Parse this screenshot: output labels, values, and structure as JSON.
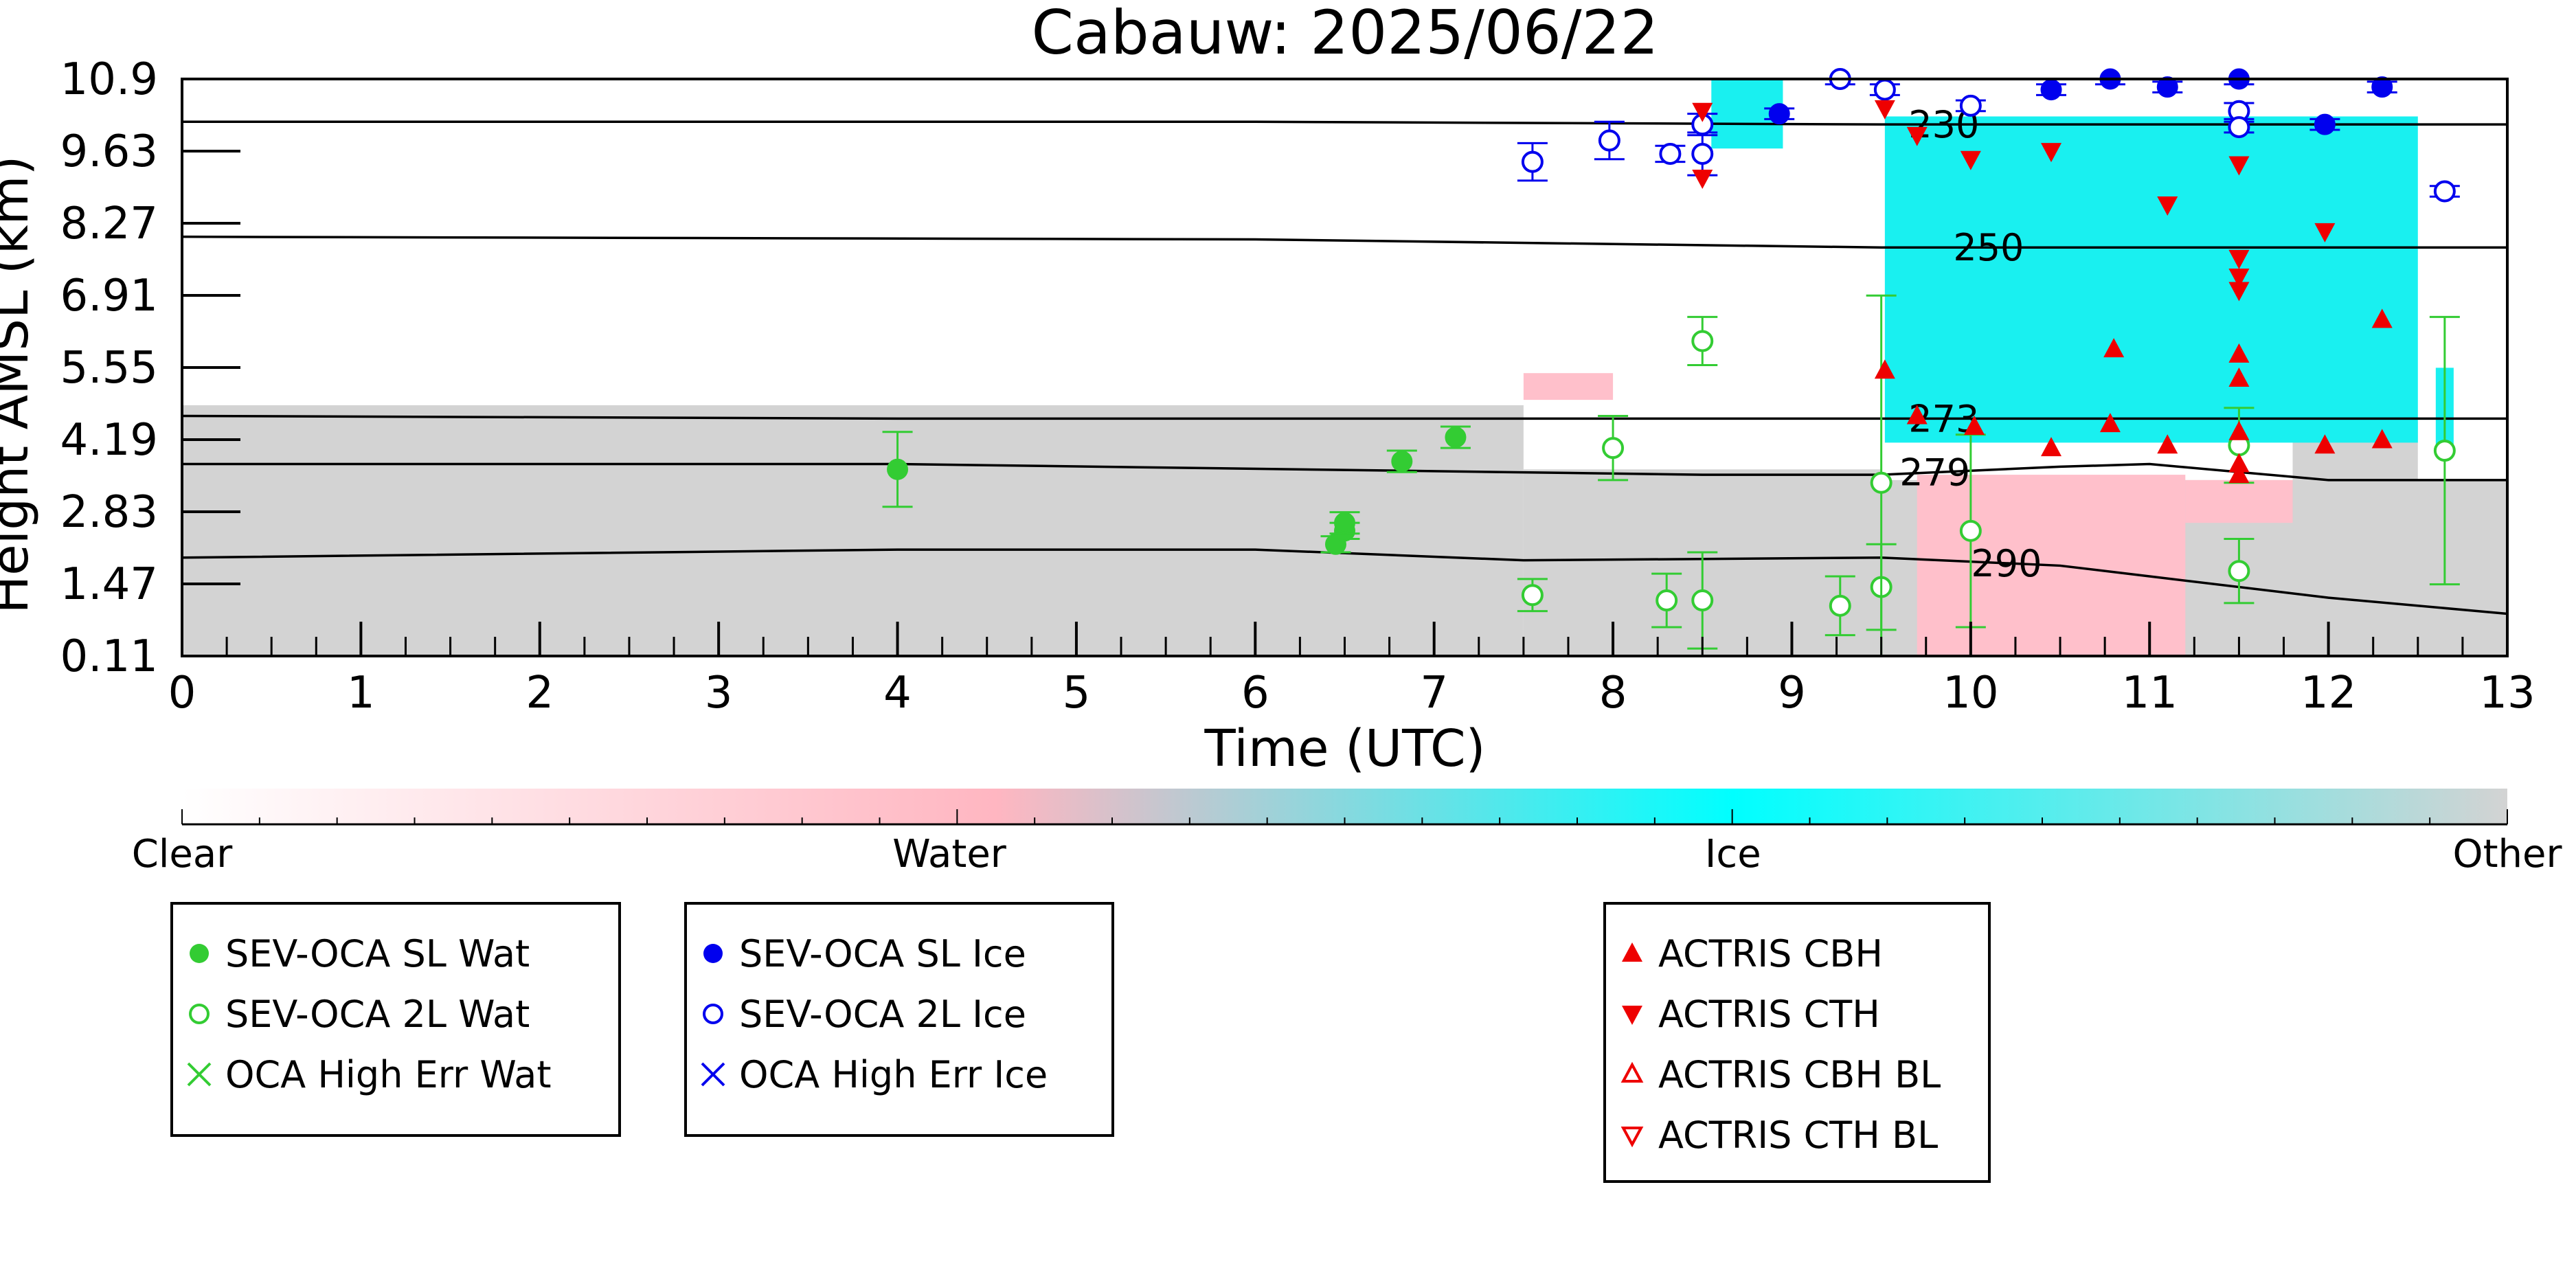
{
  "chart_data": {
    "type": "scatter",
    "title": "Cabauw: 2025/06/22",
    "xlabel": "Time (UTC)",
    "ylabel": "Height AMSL (km)",
    "xlim": [
      0,
      13
    ],
    "ylim": [
      0.11,
      10.9
    ],
    "xticks": [
      "0",
      "1",
      "2",
      "3",
      "4",
      "5",
      "6",
      "7",
      "8",
      "9",
      "10",
      "11",
      "12",
      "13"
    ],
    "yticks": [
      "0.11",
      "1.47",
      "2.83",
      "4.19",
      "5.55",
      "6.91",
      "8.27",
      "9.63",
      "10.9"
    ],
    "colorbar": {
      "labels": [
        {
          "text": "Clear",
          "pos": 0
        },
        {
          "text": "Water",
          "pos": 0.33
        },
        {
          "text": "Ice",
          "pos": 0.667
        },
        {
          "text": "Other",
          "pos": 1
        }
      ],
      "colors": [
        "#ffffff",
        "#ffb6c1",
        "#00ffff",
        "#d3d3d3"
      ]
    },
    "contours": [
      {
        "label": "230",
        "points": [
          [
            0,
            10.1
          ],
          [
            6,
            10.1
          ],
          [
            9.5,
            10.05
          ],
          [
            13,
            10.05
          ]
        ],
        "label_x": 9.85
      },
      {
        "label": "250",
        "points": [
          [
            0,
            7.95
          ],
          [
            6,
            7.9
          ],
          [
            9.5,
            7.75
          ],
          [
            13,
            7.75
          ]
        ],
        "label_x": 10.1
      },
      {
        "label": "273",
        "points": [
          [
            0,
            4.6
          ],
          [
            4,
            4.55
          ],
          [
            9.5,
            4.55
          ],
          [
            13,
            4.55
          ]
        ],
        "label_x": 9.85
      },
      {
        "label": "279",
        "points": [
          [
            0,
            3.7
          ],
          [
            4,
            3.7
          ],
          [
            8.5,
            3.5
          ],
          [
            9.5,
            3.5
          ],
          [
            10.5,
            3.65
          ],
          [
            11,
            3.7
          ],
          [
            12,
            3.4
          ],
          [
            13,
            3.4
          ]
        ],
        "label_x": 9.8
      },
      {
        "label": "290",
        "points": [
          [
            0,
            1.95
          ],
          [
            4,
            2.1
          ],
          [
            6,
            2.1
          ],
          [
            7.5,
            1.9
          ],
          [
            9.5,
            1.95
          ],
          [
            10.5,
            1.8
          ],
          [
            11,
            1.6
          ],
          [
            12,
            1.2
          ],
          [
            13,
            0.9
          ]
        ],
        "label_x": 10.2
      }
    ],
    "series": [
      {
        "name": "SEV-OCA SL Wat",
        "color": "#33cc33",
        "marker": "circle-filled",
        "points": [
          [
            4.0,
            3.6,
            0.7
          ],
          [
            6.45,
            2.2,
            0.15
          ],
          [
            6.5,
            2.45,
            0.15
          ],
          [
            6.5,
            2.6,
            0.2
          ],
          [
            6.82,
            3.75,
            0.2
          ],
          [
            7.12,
            4.2,
            0.2
          ]
        ]
      },
      {
        "name": "SEV-OCA 2L Wat",
        "color": "#33cc33",
        "marker": "circle-open",
        "points": [
          [
            7.55,
            1.25,
            0.3
          ],
          [
            8.0,
            4.0,
            0.6
          ],
          [
            8.3,
            1.15,
            0.5
          ],
          [
            8.5,
            6.0,
            0.45
          ],
          [
            8.5,
            1.15,
            0.9
          ],
          [
            9.27,
            1.05,
            0.55
          ],
          [
            9.5,
            1.4,
            0.8
          ],
          [
            9.5,
            3.35,
            3.5
          ],
          [
            10.0,
            2.45,
            1.8
          ],
          [
            11.5,
            1.7,
            0.6
          ],
          [
            11.5,
            4.05,
            0.7
          ],
          [
            12.65,
            3.95,
            2.5
          ]
        ]
      },
      {
        "name": "OCA High Err Wat",
        "color": "#33cc33",
        "marker": "x",
        "points": []
      },
      {
        "name": "SEV-OCA SL Ice",
        "color": "#0000ee",
        "marker": "circle-filled",
        "points": [
          [
            8.93,
            10.25,
            0.1
          ],
          [
            10.45,
            10.7,
            0.1
          ],
          [
            10.78,
            10.9,
            0.1
          ],
          [
            11.1,
            10.75,
            0.1
          ],
          [
            11.5,
            10.9,
            0.1
          ],
          [
            11.98,
            10.05,
            0.1
          ],
          [
            12.3,
            10.75,
            0.1
          ]
        ]
      },
      {
        "name": "SEV-OCA 2L Ice",
        "color": "#0000ee",
        "marker": "circle-open",
        "points": [
          [
            7.55,
            9.35,
            0.35
          ],
          [
            7.98,
            9.75,
            0.35
          ],
          [
            8.32,
            9.5,
            0.15
          ],
          [
            8.5,
            9.5,
            0.4
          ],
          [
            8.5,
            10.05,
            0.2
          ],
          [
            9.27,
            10.9,
            0.1
          ],
          [
            9.52,
            10.7,
            0.1
          ],
          [
            10.0,
            10.4,
            0.1
          ],
          [
            11.5,
            10.3,
            0.15
          ],
          [
            11.5,
            10.0,
            0.1
          ],
          [
            12.65,
            8.8,
            0.1
          ]
        ]
      },
      {
        "name": "OCA High Err Ice",
        "color": "#0000ee",
        "marker": "x",
        "points": []
      },
      {
        "name": "ACTRIS CBH",
        "color": "#ee0000",
        "marker": "triangle-up",
        "points": [
          [
            9.52,
            5.45
          ],
          [
            9.7,
            4.6
          ],
          [
            10.02,
            4.4
          ],
          [
            10.45,
            4.0
          ],
          [
            10.78,
            4.45
          ],
          [
            11.1,
            4.05
          ],
          [
            11.5,
            4.3
          ],
          [
            11.5,
            5.3
          ],
          [
            11.5,
            5.75
          ],
          [
            11.5,
            3.7
          ],
          [
            11.5,
            3.5
          ],
          [
            11.98,
            4.05
          ],
          [
            12.3,
            4.15
          ],
          [
            12.3,
            6.4
          ],
          [
            10.8,
            5.85
          ]
        ]
      },
      {
        "name": "ACTRIS CTH",
        "color": "#ee0000",
        "marker": "triangle-down",
        "points": [
          [
            8.5,
            10.3
          ],
          [
            8.5,
            9.05
          ],
          [
            9.52,
            10.35
          ],
          [
            9.7,
            9.85
          ],
          [
            10.0,
            9.4
          ],
          [
            10.45,
            9.55
          ],
          [
            11.1,
            8.55
          ],
          [
            11.5,
            9.3
          ],
          [
            11.5,
            7.55
          ],
          [
            11.5,
            7.2
          ],
          [
            11.5,
            6.95
          ],
          [
            11.98,
            8.05
          ]
        ]
      },
      {
        "name": "ACTRIS CBH BL",
        "color": "#ee0000",
        "marker": "triangle-up-open",
        "points": []
      },
      {
        "name": "ACTRIS CTH BL",
        "color": "#ee0000",
        "marker": "triangle-down-open",
        "points": []
      }
    ],
    "background_regions": {
      "other": [
        [
          0,
          0.11,
          7.5,
          4.8
        ],
        [
          7.5,
          0.11,
          9.5,
          3.6
        ],
        [
          9.5,
          0.11,
          13,
          3.4
        ],
        [
          11.8,
          3.4,
          12.5,
          4.5
        ]
      ],
      "ice": [
        [
          9.52,
          4.1,
          12.5,
          10.2
        ],
        [
          8.55,
          9.6,
          8.95,
          10.9
        ],
        [
          12.6,
          4.0,
          12.7,
          5.5
        ]
      ],
      "water": [
        [
          9.7,
          0.11,
          11.2,
          3.5
        ],
        [
          7.5,
          4.9,
          8.0,
          5.4
        ],
        [
          11.2,
          2.6,
          11.8,
          3.4
        ]
      ]
    },
    "legend": [
      {
        "entries": [
          0,
          1,
          2
        ]
      },
      {
        "entries": [
          3,
          4,
          5
        ]
      },
      {
        "entries": [
          6,
          7,
          8,
          9
        ]
      }
    ]
  }
}
